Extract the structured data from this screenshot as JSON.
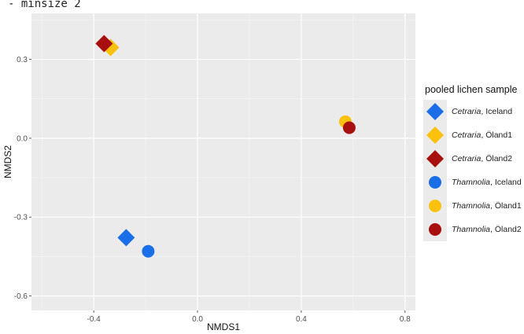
{
  "caption": "- minsize 2",
  "chart_data": {
    "type": "scatter",
    "xlabel": "NMDS1",
    "ylabel": "NMDS2",
    "xlim": [
      -0.64,
      0.84
    ],
    "ylim": [
      -0.655,
      0.475
    ],
    "xticks": [
      -0.4,
      0.0,
      0.4,
      0.8
    ],
    "yticks": [
      -0.6,
      -0.3,
      0.0,
      0.3
    ],
    "xtick_labels": [
      "-0.4",
      "0.0",
      "0.4",
      "0.8"
    ],
    "ytick_labels": [
      "-0.6",
      "-0.3",
      "0.0",
      "0.3"
    ],
    "grid": true,
    "legend_position": "right",
    "legend_title": "pooled lichen sample",
    "series": [
      {
        "name": "Cetraria, Iceland",
        "genus": "Cetraria",
        "site": ", Iceland",
        "shape": "diamond",
        "color": "#1a6ee8",
        "points": [
          [
            -0.275,
            -0.378
          ]
        ]
      },
      {
        "name": "Cetraria, Öland1",
        "genus": "Cetraria",
        "site": ", Öland1",
        "shape": "diamond",
        "color": "#fcc10d",
        "points": [
          [
            -0.335,
            0.345
          ]
        ]
      },
      {
        "name": "Cetraria, Öland2",
        "genus": "Cetraria",
        "site": ", Öland2",
        "shape": "diamond",
        "color": "#a80f0f",
        "points": [
          [
            -0.36,
            0.36
          ]
        ]
      },
      {
        "name": "Thamnolia, Iceland",
        "genus": "Thamnolia",
        "site": ", Iceland",
        "shape": "circle",
        "color": "#1a6ee8",
        "points": [
          [
            -0.19,
            -0.43
          ]
        ]
      },
      {
        "name": "Thamnolia, Öland1",
        "genus": "Thamnolia",
        "site": ", Öland1",
        "shape": "circle",
        "color": "#fcc10d",
        "points": [
          [
            0.57,
            0.063
          ]
        ]
      },
      {
        "name": "Thamnolia, Öland2",
        "genus": "Thamnolia",
        "site": ", Öland2",
        "shape": "circle",
        "color": "#a80f0f",
        "points": [
          [
            0.585,
            0.04
          ]
        ]
      }
    ]
  }
}
